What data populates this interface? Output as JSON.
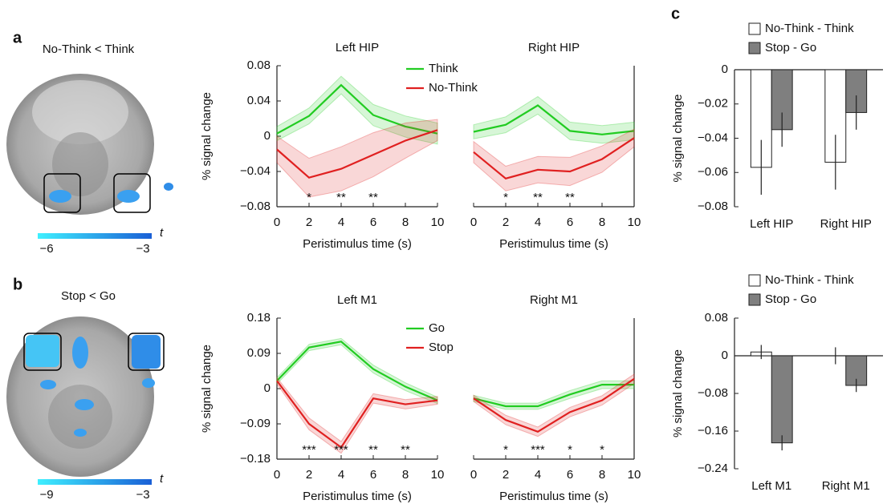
{
  "panels": {
    "a": {
      "label": "a",
      "title": "No-Think < Think",
      "colorbar": {
        "min": "−6",
        "max": "−3",
        "unit": "t"
      }
    },
    "b": {
      "label": "b",
      "title": "Stop < Go",
      "colorbar": {
        "min": "−9",
        "max": "−3",
        "unit": "t"
      }
    },
    "c": {
      "label": "c"
    }
  },
  "chart_data": [
    {
      "type": "line",
      "title": "Left HIP",
      "x": [
        0,
        2,
        4,
        6,
        8,
        10
      ],
      "series": [
        {
          "name": "Think",
          "color": "#22cc22",
          "values": [
            0.003,
            0.023,
            0.058,
            0.024,
            0.011,
            0.003
          ],
          "error": [
            0.008,
            0.009,
            0.01,
            0.012,
            0.012,
            0.012
          ]
        },
        {
          "name": "No-Think",
          "color": "#e02020",
          "values": [
            -0.015,
            -0.047,
            -0.037,
            -0.021,
            -0.005,
            0.007
          ],
          "error": [
            0.015,
            0.022,
            0.025,
            0.025,
            0.02,
            0.012
          ]
        }
      ],
      "xlim": [
        0,
        10
      ],
      "xticks": [
        0,
        2,
        4,
        6,
        8,
        10
      ],
      "ylim": [
        -0.08,
        0.08
      ],
      "yticks": [
        {
          "value": -0.08,
          "label": "−0.08"
        },
        {
          "value": -0.04,
          "label": "−0.04"
        },
        0,
        0.04,
        0.08
      ],
      "xlabel": "Peristimulus time (s)",
      "ylabel": "% signal change",
      "annotations": [
        {
          "x": 2,
          "text": "*"
        },
        {
          "x": 4,
          "text": "**"
        },
        {
          "x": 6,
          "text": "**"
        }
      ]
    },
    {
      "type": "line",
      "title": "Right HIP",
      "x": [
        0,
        2,
        4,
        6,
        8,
        10
      ],
      "series": [
        {
          "color": "#22cc22",
          "values": [
            0.005,
            0.013,
            0.035,
            0.006,
            0.002,
            0.006
          ],
          "error": [
            0.008,
            0.009,
            0.01,
            0.01,
            0.01,
            0.01
          ]
        },
        {
          "color": "#e02020",
          "values": [
            -0.018,
            -0.048,
            -0.038,
            -0.04,
            -0.026,
            -0.002
          ],
          "error": [
            0.012,
            0.014,
            0.015,
            0.016,
            0.015,
            0.01
          ]
        }
      ],
      "xlim": [
        0,
        10
      ],
      "xticks": [
        0,
        2,
        4,
        6,
        8,
        10
      ],
      "ylim": [
        -0.08,
        0.08
      ],
      "xlabel": "Peristimulus time (s)",
      "annotations": [
        {
          "x": 2,
          "text": "*"
        },
        {
          "x": 4,
          "text": "**"
        },
        {
          "x": 6,
          "text": "**"
        }
      ]
    },
    {
      "type": "bar",
      "categories": [
        "Left HIP",
        "Right HIP"
      ],
      "series": [
        {
          "name": "No-Think - Think",
          "color": "#ffffff",
          "values": [
            -0.057,
            -0.054
          ],
          "errors": [
            0.016,
            0.016
          ]
        },
        {
          "name": "Stop - Go",
          "color": "#7f7f7f",
          "values": [
            -0.035,
            -0.025
          ],
          "errors": [
            0.01,
            0.01
          ]
        }
      ],
      "ylim": [
        -0.08,
        0
      ],
      "yticks": [
        {
          "value": -0.08,
          "label": "−0.08"
        },
        {
          "value": -0.06,
          "label": "−0.06"
        },
        {
          "value": -0.04,
          "label": "−0.04"
        },
        {
          "value": -0.02,
          "label": "−0.02"
        },
        0
      ],
      "ylabel": "% signal change"
    },
    {
      "type": "line",
      "title": "Left M1",
      "x": [
        0,
        2,
        4,
        6,
        8,
        10
      ],
      "series": [
        {
          "name": "Go",
          "color": "#22cc22",
          "values": [
            0.02,
            0.105,
            0.12,
            0.05,
            0.005,
            -0.03
          ],
          "error": [
            0.008,
            0.008,
            0.008,
            0.01,
            0.01,
            0.008
          ]
        },
        {
          "name": "Stop",
          "color": "#e02020",
          "values": [
            0.02,
            -0.09,
            -0.15,
            -0.025,
            -0.04,
            -0.03
          ],
          "error": [
            0.008,
            0.015,
            0.015,
            0.012,
            0.012,
            0.01
          ]
        }
      ],
      "xlim": [
        0,
        10
      ],
      "xticks": [
        0,
        2,
        4,
        6,
        8,
        10
      ],
      "ylim": [
        -0.18,
        0.18
      ],
      "yticks": [
        {
          "value": -0.18,
          "label": "−0.18"
        },
        {
          "value": -0.09,
          "label": "−0.09"
        },
        0,
        0.09,
        0.18
      ],
      "xlabel": "Peristimulus time (s)",
      "ylabel": "% signal change",
      "annotations": [
        {
          "x": 2,
          "text": "***"
        },
        {
          "x": 4,
          "text": "***"
        },
        {
          "x": 6,
          "text": "**"
        },
        {
          "x": 8,
          "text": "**"
        }
      ]
    },
    {
      "type": "line",
      "title": "Right M1",
      "x": [
        0,
        2,
        4,
        6,
        8,
        10
      ],
      "series": [
        {
          "color": "#22cc22",
          "values": [
            -0.025,
            -0.045,
            -0.045,
            -0.015,
            0.01,
            0.01
          ],
          "error": [
            0.008,
            0.008,
            0.008,
            0.01,
            0.01,
            0.01
          ]
        },
        {
          "color": "#e02020",
          "values": [
            -0.025,
            -0.08,
            -0.11,
            -0.06,
            -0.03,
            0.025
          ],
          "error": [
            0.008,
            0.012,
            0.012,
            0.012,
            0.012,
            0.012
          ]
        }
      ],
      "xlim": [
        0,
        10
      ],
      "xticks": [
        0,
        2,
        4,
        6,
        8,
        10
      ],
      "ylim": [
        -0.18,
        0.18
      ],
      "xlabel": "Peristimulus time (s)",
      "annotations": [
        {
          "x": 2,
          "text": "*"
        },
        {
          "x": 4,
          "text": "***"
        },
        {
          "x": 6,
          "text": "*"
        },
        {
          "x": 8,
          "text": "*"
        }
      ]
    },
    {
      "type": "bar",
      "categories": [
        "Left M1",
        "Right M1"
      ],
      "series": [
        {
          "name": "No-Think - Think",
          "color": "#ffffff",
          "values": [
            0.008,
            0
          ],
          "errors": [
            0.015,
            0.018
          ]
        },
        {
          "name": "Stop - Go",
          "color": "#7f7f7f",
          "values": [
            -0.185,
            -0.063
          ],
          "errors": [
            0.016,
            0.014
          ]
        }
      ],
      "ylim": [
        -0.24,
        0.08
      ],
      "yticks": [
        {
          "value": -0.24,
          "label": "−0.24"
        },
        {
          "value": -0.16,
          "label": "−0.16"
        },
        {
          "value": -0.08,
          "label": "−0.08"
        },
        0,
        0.08
      ],
      "ylabel": "% signal change"
    }
  ]
}
